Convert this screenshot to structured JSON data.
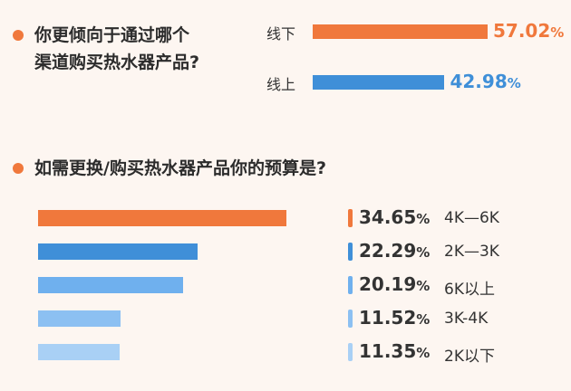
{
  "q1": {
    "line1": "你更倾向于通过哪个",
    "line2": "渠道购买热水器产品?"
  },
  "q2": {
    "text": "如需更换/购买热水器产品你的预算是?"
  },
  "percent_sign": "%",
  "colors": {
    "accent": "#f0783c",
    "blue": "#3f8fd8"
  },
  "chart_data": [
    {
      "type": "bar",
      "orientation": "horizontal",
      "categories": [
        "线下",
        "线上"
      ],
      "values": [
        57.02,
        42.98
      ],
      "labels": [
        "57.02",
        "42.98"
      ],
      "colors": [
        "#f0783c",
        "#3f8fd8"
      ],
      "xlim": [
        0,
        57.02
      ]
    },
    {
      "type": "bar",
      "orientation": "horizontal",
      "categories": [
        "4K—6K",
        "2K—3K",
        "6K以上",
        "3K-4K",
        "2K以下"
      ],
      "values": [
        34.65,
        22.29,
        20.19,
        11.52,
        11.35
      ],
      "labels": [
        "34.65",
        "22.29",
        "20.19",
        "11.52",
        "11.35"
      ],
      "colors": [
        "#f0783c",
        "#3f8fd8",
        "#6fb0ee",
        "#8cc0f2",
        "#a9d0f5"
      ],
      "xlim": [
        0,
        34.65
      ]
    }
  ]
}
